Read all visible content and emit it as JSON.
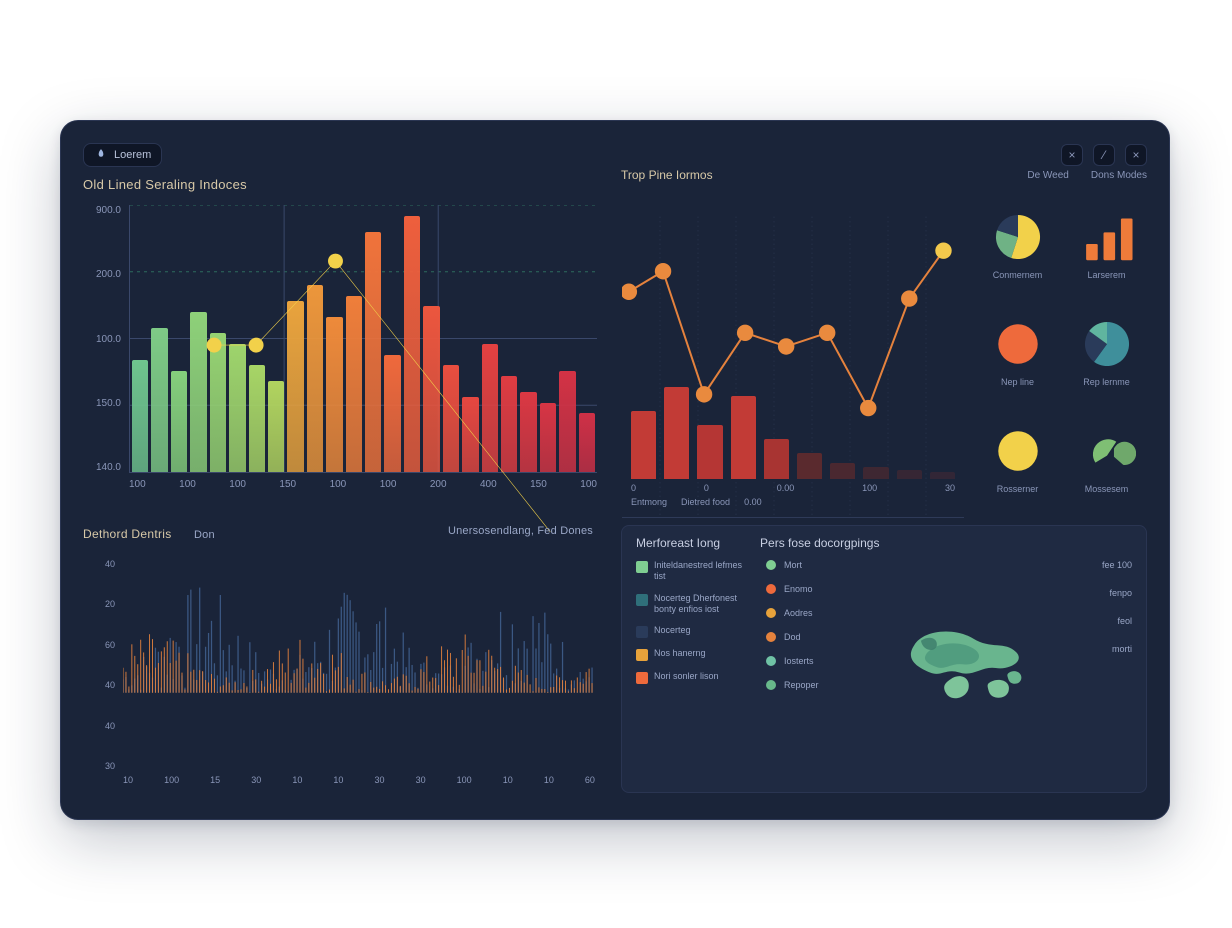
{
  "brand_label": "Loerem",
  "window_buttons": [
    "minimize",
    "maximize",
    "close"
  ],
  "colors": {
    "bg": "#1a2439",
    "panel_border": "#2a3552",
    "axis": "#3a486b",
    "grid_dash": "#2c6b5d",
    "text_muted": "#8a96b8",
    "text_title": "#d8c9a8"
  },
  "main_chart": {
    "title": "Old Lined Seraling Indoces",
    "type": "bar+line",
    "y_ticks": [
      "900.0",
      "200.0",
      "100.0",
      "150.0",
      "140.0"
    ],
    "x_ticks": [
      "100",
      "100",
      "100",
      "150",
      "100",
      "100",
      "200",
      "400",
      "150",
      "100"
    ],
    "ylim": [
      0,
      100
    ],
    "bar_colors_gradient": [
      "#7fce92",
      "#8fd07f",
      "#a4cf6e",
      "#e7a23b",
      "#ee7b3a",
      "#e85a3e",
      "#d94a3b"
    ],
    "bars": [
      {
        "h": 42,
        "c": "#6fc48e"
      },
      {
        "h": 54,
        "c": "#7ecb86"
      },
      {
        "h": 38,
        "c": "#85cf7c"
      },
      {
        "h": 60,
        "c": "#8ed179"
      },
      {
        "h": 52,
        "c": "#96d372"
      },
      {
        "h": 48,
        "c": "#9ed46c"
      },
      {
        "h": 40,
        "c": "#a7d566"
      },
      {
        "h": 34,
        "c": "#b1d45f"
      },
      {
        "h": 64,
        "c": "#e9a33d"
      },
      {
        "h": 70,
        "c": "#ec963b"
      },
      {
        "h": 58,
        "c": "#ee8a3a"
      },
      {
        "h": 66,
        "c": "#ef7e3a"
      },
      {
        "h": 90,
        "c": "#f0733b"
      },
      {
        "h": 44,
        "c": "#ef693c"
      },
      {
        "h": 96,
        "c": "#ee5f3d"
      },
      {
        "h": 62,
        "c": "#ec563e"
      },
      {
        "h": 40,
        "c": "#e94e3f"
      },
      {
        "h": 28,
        "c": "#e64740"
      },
      {
        "h": 48,
        "c": "#e34141"
      },
      {
        "h": 36,
        "c": "#df3c42"
      },
      {
        "h": 30,
        "c": "#db3843"
      },
      {
        "h": 26,
        "c": "#d73544"
      },
      {
        "h": 38,
        "c": "#d33245"
      },
      {
        "h": 22,
        "c": "#cf3046"
      }
    ],
    "overlay_points_pct": [
      [
        18,
        30
      ],
      [
        27,
        30
      ],
      [
        44,
        12
      ]
    ],
    "overlay_line_color": "#f2d14a",
    "overlay_point_color": "#f2d14a"
  },
  "top_right": {
    "title": "Trop Pine Iormos",
    "tags": [
      "De Weed",
      "Dons Modes"
    ],
    "line_chart": {
      "type": "line",
      "color_line": "#e5823d",
      "color_points": "#e98a3e",
      "accent_point": "#f3c94c",
      "xlim": [
        0,
        100
      ],
      "ylim": [
        0,
        100
      ],
      "points_pct": [
        [
          2,
          28
        ],
        [
          12,
          22
        ],
        [
          24,
          58
        ],
        [
          36,
          40
        ],
        [
          48,
          44
        ],
        [
          60,
          40
        ],
        [
          72,
          62
        ],
        [
          84,
          30
        ],
        [
          94,
          16
        ]
      ],
      "axis_color": "#2e3a56"
    },
    "mini_bars": {
      "type": "bar",
      "values": [
        58,
        78,
        46,
        70,
        34,
        22,
        14,
        10,
        8,
        6
      ],
      "colors": [
        "#c23b36",
        "#c23b36",
        "#b53634",
        "#c23b36",
        "#a83432",
        "#5a2a2e",
        "#4a2830",
        "#3e2732",
        "#362634",
        "#322636"
      ],
      "x_ticks": [
        "0",
        "0",
        "0.00",
        "100",
        "30"
      ],
      "caption_left": "Entmong",
      "caption_mid": "Dietred food",
      "caption_val": "0.00"
    },
    "widgets": [
      {
        "type": "pie",
        "label": "Conmernem",
        "slices": [
          {
            "v": 55,
            "c": "#f2d14a"
          },
          {
            "v": 25,
            "c": "#6fb285"
          },
          {
            "v": 20,
            "c": "#2a3b5a"
          }
        ]
      },
      {
        "type": "bars",
        "label": "Larserem",
        "bars": [
          {
            "h": 35,
            "c": "#ee7b3a"
          },
          {
            "h": 60,
            "c": "#ee7b3a"
          },
          {
            "h": 90,
            "c": "#ee7b3a"
          }
        ]
      },
      {
        "type": "circle",
        "label": "Nep line",
        "color": "#ee6a3c"
      },
      {
        "type": "pie",
        "label": "Rep lernme",
        "slices": [
          {
            "v": 60,
            "c": "#3f8f9b"
          },
          {
            "v": 25,
            "c": "#2a3b5a"
          },
          {
            "v": 15,
            "c": "#60b59f"
          }
        ]
      },
      {
        "type": "circle",
        "label": "Rosserner",
        "color": "#f2d14a"
      },
      {
        "type": "shapes",
        "label": "Mossesem",
        "color": "#7fbf74"
      }
    ]
  },
  "bottom_left": {
    "title_left": "Dethord Dentris",
    "subtitle_left": "Don",
    "title_right": "Unersosendlang, Fed Dones",
    "type": "spike",
    "series": [
      {
        "color": "#3f5e8c",
        "amp": 1.0
      },
      {
        "color": "#e5823d",
        "amp": 0.55
      }
    ],
    "y_ticks": [
      "40",
      "20",
      "60",
      "40",
      "40",
      "30"
    ],
    "x_ticks": [
      "10",
      "100",
      "15",
      "30",
      "10",
      "10",
      "30",
      "30",
      "100",
      "10",
      "10",
      "60"
    ]
  },
  "bottom_right": {
    "head_left": "Merforeast Iong",
    "head_right": "Pers fose docorgpings",
    "legend": [
      {
        "color": "#7fce92",
        "label": "Initeldanestred lefmes tist"
      },
      {
        "color": "#2f6f7a",
        "label": "Nocerteg  Dherfonest bonty enfios iost"
      },
      {
        "color": "#2a3b5a",
        "label": "Nocerteg"
      },
      {
        "color": "#e7a23b",
        "label": "Nos hanerng"
      },
      {
        "color": "#ee6a3c",
        "label": "Nori sonler lison"
      }
    ],
    "dots": [
      {
        "color": "#7fce92",
        "label": "Mort"
      },
      {
        "color": "#ee6a3c",
        "label": "Enomo"
      },
      {
        "color": "#e7a23b",
        "label": "Aodres"
      },
      {
        "color": "#e5823d",
        "label": "Dod"
      },
      {
        "color": "#6fc2a5",
        "label": "Iosterts"
      },
      {
        "color": "#68b98b",
        "label": "Repoper"
      }
    ],
    "values": [
      "fee 100",
      "fenpo",
      "feol",
      "morti"
    ],
    "map_colors": [
      "#69b58e",
      "#7ec49a",
      "#4f9a7d",
      "#3e7f6c"
    ]
  }
}
